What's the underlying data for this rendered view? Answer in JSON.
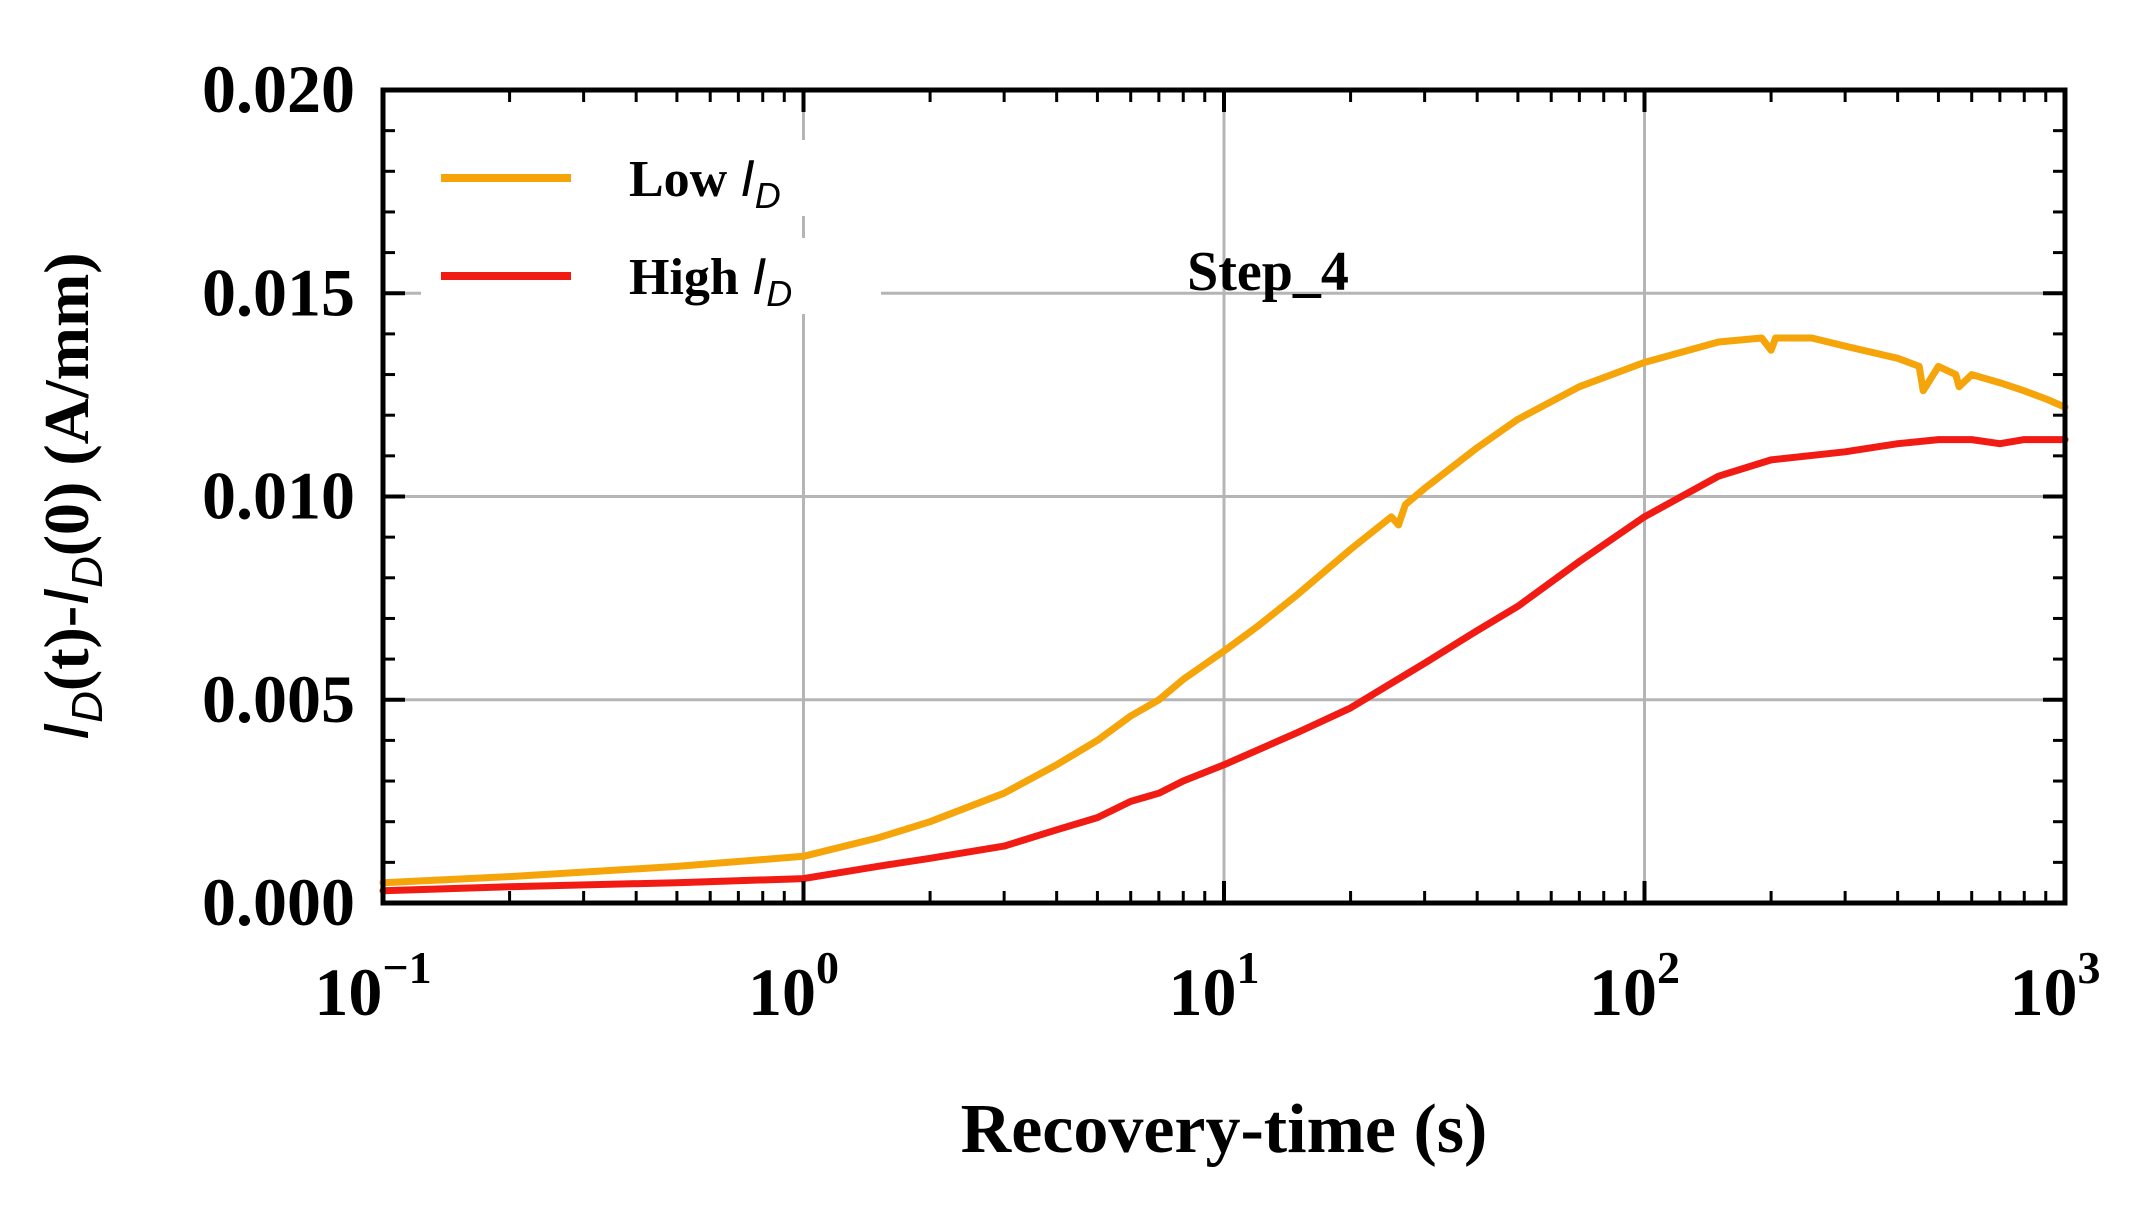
{
  "chart_data": {
    "type": "line",
    "title": "",
    "annotation": "Step_4",
    "xlabel": "Recovery-time (s)",
    "ylabel_parts": [
      "I",
      "D",
      "(t)-",
      "I",
      "D",
      "(0) (A/mm)"
    ],
    "x_scale": "log",
    "xlim": [
      0.1,
      1000
    ],
    "ylim": [
      0,
      0.02
    ],
    "grid": true,
    "legend_position": "top-left",
    "x_ticks": [
      {
        "value": 0.1,
        "base": "10",
        "exp": "−1"
      },
      {
        "value": 1,
        "base": "10",
        "exp": "0"
      },
      {
        "value": 10,
        "base": "10",
        "exp": "1"
      },
      {
        "value": 100,
        "base": "10",
        "exp": "2"
      },
      {
        "value": 1000,
        "base": "10",
        "exp": "3"
      }
    ],
    "y_ticks": [
      {
        "value": 0.0,
        "label": "0.000"
      },
      {
        "value": 0.005,
        "label": "0.005"
      },
      {
        "value": 0.01,
        "label": "0.010"
      },
      {
        "value": 0.015,
        "label": "0.015"
      },
      {
        "value": 0.02,
        "label": "0.020"
      }
    ],
    "series": [
      {
        "name": "Low I_D",
        "legend_label": "Low ",
        "legend_italic": "I",
        "legend_sub": "D",
        "color": "#F5A40A",
        "x": [
          0.1,
          0.2,
          0.5,
          1,
          1.5,
          2,
          3,
          4,
          5,
          6,
          7,
          8,
          10,
          12,
          15,
          20,
          25,
          26,
          27,
          30,
          40,
          50,
          70,
          100,
          150,
          190,
          200,
          205,
          250,
          300,
          400,
          450,
          460,
          500,
          550,
          560,
          600,
          700,
          800,
          900,
          1000
        ],
        "values": [
          0.0005,
          0.00065,
          0.0009,
          0.00115,
          0.0016,
          0.002,
          0.0027,
          0.0034,
          0.004,
          0.0046,
          0.005,
          0.0055,
          0.0062,
          0.0068,
          0.0076,
          0.0087,
          0.0095,
          0.0093,
          0.0098,
          0.0102,
          0.0112,
          0.0119,
          0.0127,
          0.0133,
          0.0138,
          0.0139,
          0.0136,
          0.0139,
          0.0139,
          0.0137,
          0.0134,
          0.0132,
          0.0126,
          0.0132,
          0.013,
          0.0127,
          0.013,
          0.0128,
          0.0126,
          0.0124,
          0.0122
        ]
      },
      {
        "name": "High I_D",
        "legend_label": "High ",
        "legend_italic": "I",
        "legend_sub": "D",
        "color": "#F11B14",
        "x": [
          0.1,
          0.2,
          0.5,
          1,
          1.5,
          2,
          3,
          4,
          5,
          6,
          7,
          8,
          10,
          15,
          20,
          30,
          40,
          50,
          70,
          100,
          150,
          200,
          300,
          400,
          500,
          600,
          700,
          800,
          1000
        ],
        "values": [
          0.0003,
          0.0004,
          0.0005,
          0.0006,
          0.0009,
          0.0011,
          0.0014,
          0.0018,
          0.0021,
          0.0025,
          0.0027,
          0.003,
          0.0034,
          0.0042,
          0.0048,
          0.0059,
          0.0067,
          0.0073,
          0.0084,
          0.0095,
          0.0105,
          0.0109,
          0.0111,
          0.0113,
          0.0114,
          0.0114,
          0.0113,
          0.0114,
          0.0114
        ]
      }
    ]
  }
}
